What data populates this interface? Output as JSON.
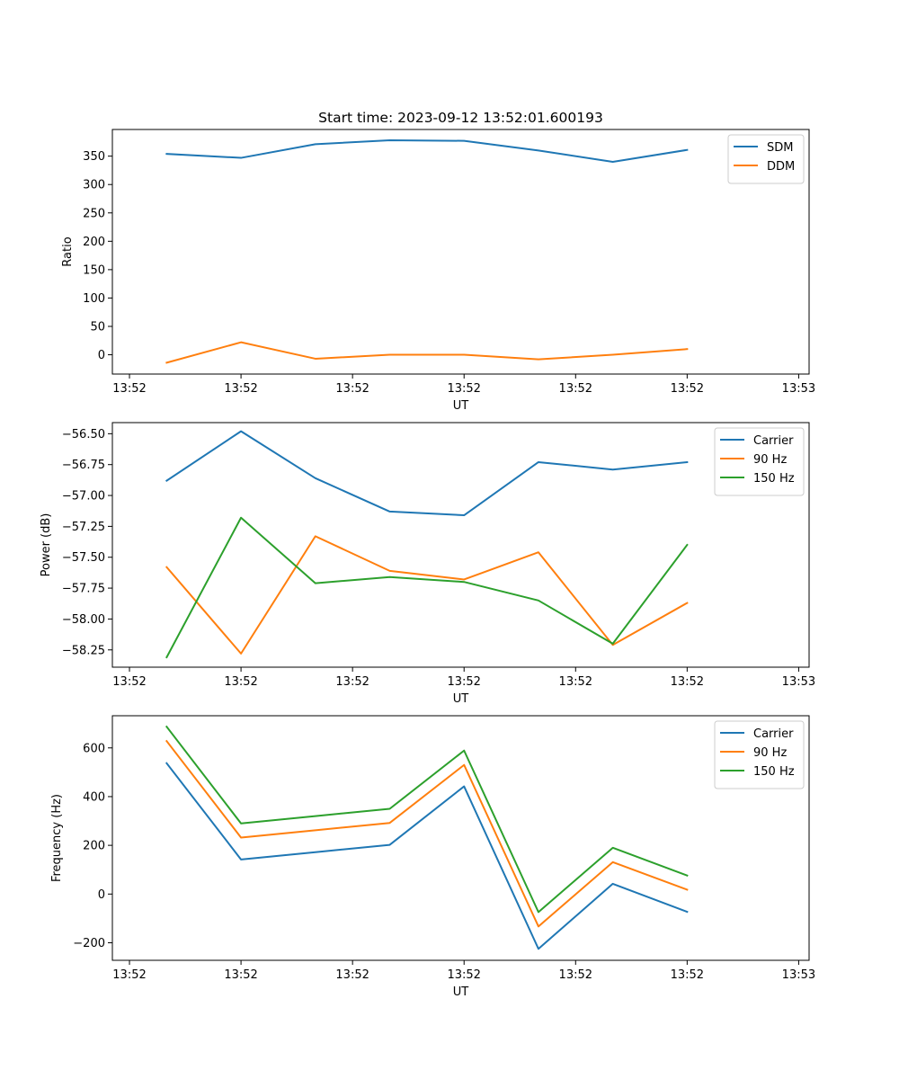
{
  "figure_title": "Start time: 2023-09-12 13:52:01.600193",
  "chart_data": [
    {
      "type": "line",
      "title": "Start time: 2023-09-12 13:52:01.600193",
      "xlabel": "UT",
      "ylabel": "Ratio",
      "x": [
        1,
        2,
        3,
        4,
        5,
        6,
        7,
        8
      ],
      "xlim": [
        0.27,
        9.64
      ],
      "xticks": [
        {
          "value": 0.5,
          "label": "13:52"
        },
        {
          "value": 2.0,
          "label": "13:52"
        },
        {
          "value": 3.5,
          "label": "13:52"
        },
        {
          "value": 5.0,
          "label": "13:52"
        },
        {
          "value": 6.5,
          "label": "13:52"
        },
        {
          "value": 8.0,
          "label": "13:52"
        },
        {
          "value": 9.5,
          "label": "13:53"
        }
      ],
      "ylim": [
        -34,
        397
      ],
      "yticks": [
        0,
        50,
        100,
        150,
        200,
        250,
        300,
        350
      ],
      "ytick_labels": [
        "0",
        "50",
        "100",
        "150",
        "200",
        "250",
        "300",
        "350"
      ],
      "legend_position": "top-right",
      "series": [
        {
          "name": "SDM",
          "color": "#1f77b4",
          "values": [
            354,
            347,
            371,
            378,
            377,
            360,
            340,
            361
          ]
        },
        {
          "name": "DDM",
          "color": "#ff7f0e",
          "values": [
            -14,
            22,
            -7,
            0,
            0,
            -8,
            0,
            10
          ]
        }
      ]
    },
    {
      "type": "line",
      "title": "",
      "xlabel": "UT",
      "ylabel": "Power (dB)",
      "x": [
        1,
        2,
        3,
        4,
        5,
        6,
        7,
        8
      ],
      "xlim": [
        0.27,
        9.64
      ],
      "xticks": [
        {
          "value": 0.5,
          "label": "13:52"
        },
        {
          "value": 2.0,
          "label": "13:52"
        },
        {
          "value": 3.5,
          "label": "13:52"
        },
        {
          "value": 5.0,
          "label": "13:52"
        },
        {
          "value": 6.5,
          "label": "13:52"
        },
        {
          "value": 8.0,
          "label": "13:52"
        },
        {
          "value": 9.5,
          "label": "13:53"
        }
      ],
      "ylim": [
        -58.39,
        -56.41
      ],
      "yticks": [
        -58.25,
        -58.0,
        -57.75,
        -57.5,
        -57.25,
        -57.0,
        -56.75,
        -56.5
      ],
      "ytick_labels": [
        "−58.25",
        "−58.00",
        "−57.75",
        "−57.50",
        "−57.25",
        "−57.00",
        "−56.75",
        "−56.50"
      ],
      "legend_position": "top-right",
      "series": [
        {
          "name": "Carrier",
          "color": "#1f77b4",
          "values": [
            -56.88,
            -56.48,
            -56.86,
            -57.13,
            -57.16,
            -56.73,
            -56.79,
            -56.73
          ]
        },
        {
          "name": "90 Hz",
          "color": "#ff7f0e",
          "values": [
            -57.58,
            -58.28,
            -57.33,
            -57.61,
            -57.68,
            -57.46,
            -58.21,
            -57.87
          ]
        },
        {
          "name": "150 Hz",
          "color": "#2ca02c",
          "values": [
            -58.31,
            -57.18,
            -57.71,
            -57.66,
            -57.7,
            -57.85,
            -58.2,
            -57.4
          ]
        }
      ]
    },
    {
      "type": "line",
      "title": "",
      "xlabel": "UT",
      "ylabel": "Frequency (Hz)",
      "x": [
        1,
        2,
        3,
        4,
        5,
        6,
        7,
        8
      ],
      "xlim": [
        0.27,
        9.64
      ],
      "xticks": [
        {
          "value": 0.5,
          "label": "13:52"
        },
        {
          "value": 2.0,
          "label": "13:52"
        },
        {
          "value": 3.5,
          "label": "13:52"
        },
        {
          "value": 5.0,
          "label": "13:52"
        },
        {
          "value": 6.5,
          "label": "13:52"
        },
        {
          "value": 8.0,
          "label": "13:52"
        },
        {
          "value": 9.5,
          "label": "13:53"
        }
      ],
      "ylim": [
        -272,
        732
      ],
      "yticks": [
        -200,
        0,
        200,
        400,
        600
      ],
      "ytick_labels": [
        "−200",
        "0",
        "200",
        "400",
        "600"
      ],
      "legend_position": "top-right",
      "series": [
        {
          "name": "Carrier",
          "color": "#1f77b4",
          "values": [
            537,
            142,
            172,
            202,
            442,
            -225,
            42,
            -73
          ]
        },
        {
          "name": "90 Hz",
          "color": "#ff7f0e",
          "values": [
            628,
            232,
            262,
            292,
            530,
            -133,
            131,
            18
          ]
        },
        {
          "name": "150 Hz",
          "color": "#2ca02c",
          "values": [
            687,
            290,
            320,
            350,
            589,
            -74,
            190,
            76
          ]
        }
      ]
    }
  ]
}
